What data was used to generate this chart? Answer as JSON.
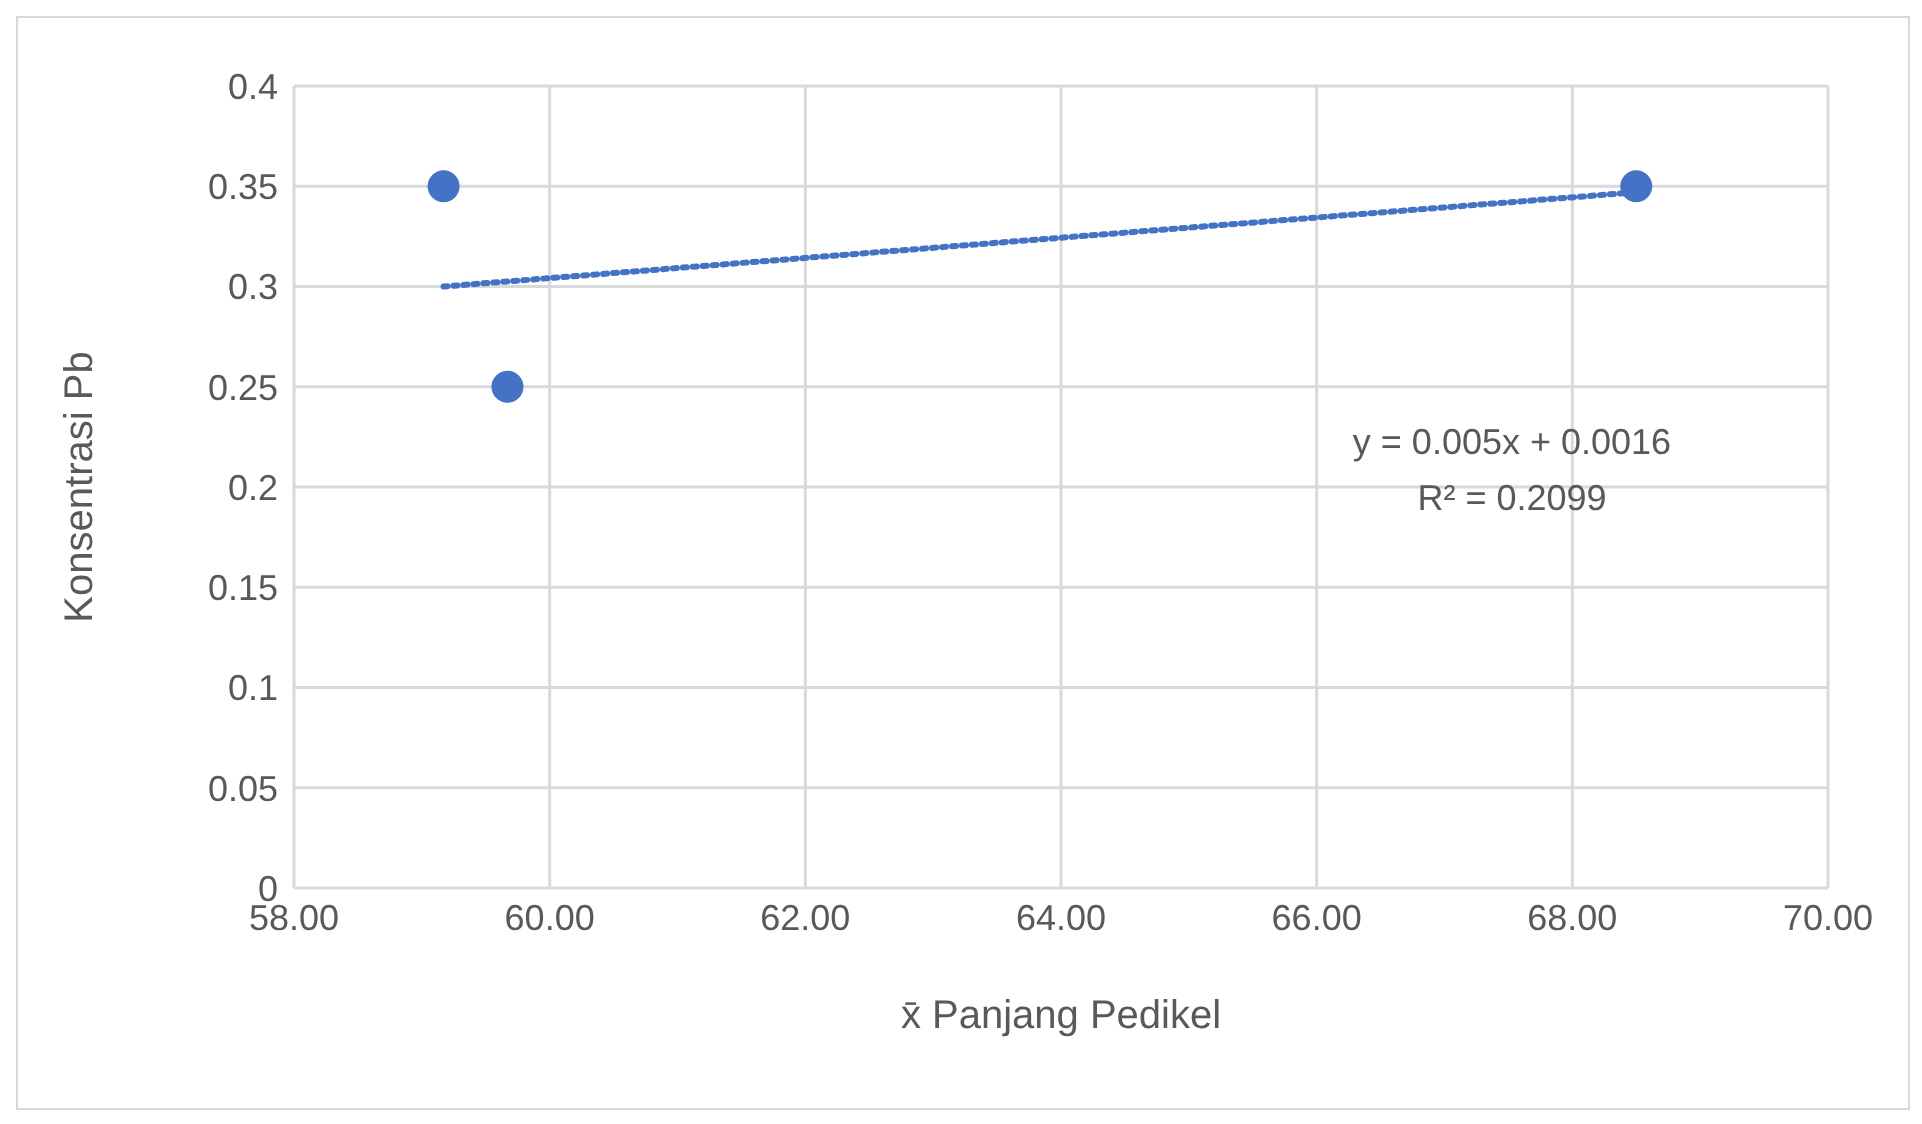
{
  "chart_data": {
    "type": "scatter",
    "xlabel": "x̄ Panjang Pedikel",
    "ylabel": "Konsentrasi Pb",
    "series": [
      {
        "color": "#4472c4",
        "x": [
          59.17,
          59.67,
          68.5
        ],
        "values": [
          0.35,
          0.25,
          0.35
        ],
        "marker": "circle"
      },
      {
        "type": "line",
        "color": "#4472c4",
        "x": [
          59.17,
          68.5
        ],
        "values": [
          0.3,
          0.347
        ],
        "line_style": "dotted",
        "marker": "none"
      }
    ],
    "xlim": [
      58,
      70
    ],
    "xticks": [
      {
        "value": 58,
        "label": "58.00"
      },
      {
        "value": 60,
        "label": "60.00"
      },
      {
        "value": 62,
        "label": "62.00"
      },
      {
        "value": 64,
        "label": "64.00"
      },
      {
        "value": 66,
        "label": "66.00"
      },
      {
        "value": 68,
        "label": "68.00"
      },
      {
        "value": 70,
        "label": "70.00"
      }
    ],
    "ylim": [
      0,
      0.4
    ],
    "yticks": [
      0,
      0.05,
      0.1,
      0.15,
      0.2,
      0.25,
      0.3,
      0.35,
      0.4
    ],
    "grid": true,
    "annotations": [
      "y = 0.005x + 0.0016",
      "R² = 0.2099"
    ]
  }
}
